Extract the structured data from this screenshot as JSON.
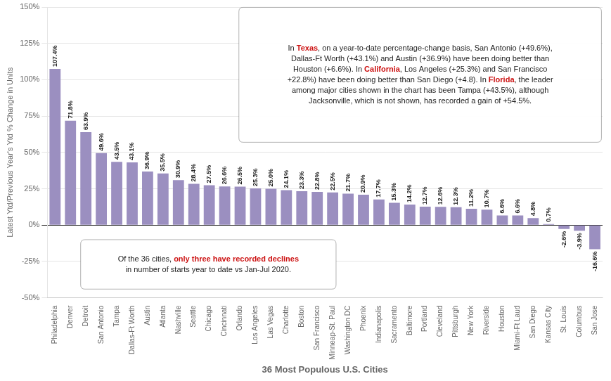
{
  "chart_data": {
    "type": "bar",
    "categories": [
      "Philadelphia",
      "Denver",
      "Detroit",
      "San Antonio",
      "Tampa",
      "Dallas-Ft Worth",
      "Austin",
      "Atlanta",
      "Nashville",
      "Seattle",
      "Chicago",
      "Cincinnati",
      "Orlando",
      "Los Angeles",
      "Las Vegas",
      "Charlotte",
      "Boston",
      "San Francisco",
      "Minneap-St. Paul",
      "Washington DC",
      "Phoenix",
      "Indianapolis",
      "Sacramento",
      "Baltimore",
      "Portland",
      "Cleveland",
      "Pittsburgh",
      "New York",
      "Riverside",
      "Houston",
      "Miami-Ft Laud",
      "San Diego",
      "Kansas City",
      "St. Louis",
      "Columbus",
      "San Jose"
    ],
    "values": [
      107.4,
      71.8,
      63.9,
      49.6,
      43.5,
      43.1,
      36.9,
      35.5,
      30.9,
      28.4,
      27.5,
      26.6,
      26.5,
      25.3,
      25.0,
      24.1,
      23.3,
      22.8,
      22.5,
      21.7,
      20.9,
      17.7,
      15.3,
      14.2,
      12.7,
      12.6,
      12.3,
      11.2,
      10.7,
      6.6,
      6.6,
      4.8,
      0.7,
      -2.6,
      -3.9,
      -16.6
    ],
    "value_labels": [
      "107.4%",
      "71.8%",
      "63.9%",
      "49.6%",
      "43.5%",
      "43.1%",
      "36.9%",
      "35.5%",
      "30.9%",
      "28.4%",
      "27.5%",
      "26.6%",
      "26.5%",
      "25.3%",
      "25.0%",
      "24.1%",
      "23.3%",
      "22.8%",
      "22.5%",
      "21.7%",
      "20.9%",
      "17.7%",
      "15.3%",
      "14.2%",
      "12.7%",
      "12.6%",
      "12.3%",
      "11.2%",
      "10.7%",
      "6.6%",
      "6.6%",
      "4.8%",
      "0.7%",
      "-2.6%",
      "-3.9%",
      "-16.6%"
    ],
    "data_labels": true,
    "color": "#9b8fc0",
    "xlabel": "36 Most Populous U.S. Cities",
    "ylabel": "Latest Ytd/Previous Year's Ytd % Change in Units",
    "ylim": [
      -50,
      150
    ],
    "yticks": [
      {
        "value": -50,
        "label": "-50%"
      },
      {
        "value": -25,
        "label": "-25%"
      },
      {
        "value": 0,
        "label": "0%"
      },
      {
        "value": 25,
        "label": "25%"
      },
      {
        "value": 50,
        "label": "50%"
      },
      {
        "value": 75,
        "label": "75%"
      },
      {
        "value": 100,
        "label": "100%"
      },
      {
        "value": 125,
        "label": "125%"
      },
      {
        "value": 150,
        "label": "150%"
      }
    ],
    "grid": true,
    "annotations": [
      [
        [
          {
            "text": "In "
          },
          {
            "text": "Texas",
            "color": "#cc1111"
          },
          {
            "text": ", on a year-to-date percentage-change basis, San Antonio (+49.6%),"
          }
        ],
        [
          {
            "text": "Dallas-Ft Worth (+43.1%) and Austin (+36.9%) have been doing better than"
          }
        ],
        [
          {
            "text": "Houston (+6.6%). In "
          },
          {
            "text": "California",
            "color": "#cc1111"
          },
          {
            "text": ", Los Angeles (+25.3%) and San Francisco"
          }
        ],
        [
          {
            "text": "+22.8%) have been doing better than San Diego (+4.8). In "
          },
          {
            "text": "Florida",
            "color": "#cc1111"
          },
          {
            "text": ", the leader"
          }
        ],
        [
          {
            "text": "among major cities shown in the chart has been Tampa (+43.5%), although"
          }
        ],
        [
          {
            "text": "Jacksonville, which is not shown, has recorded a gain of +54.5%."
          }
        ]
      ],
      [
        [
          {
            "text": "Of the 36 cities, "
          },
          {
            "text": "only three have recorded declines",
            "color": "#cc1111"
          }
        ],
        [
          {
            "text": "in number of starts year to date vs Jan-Jul 2020."
          }
        ]
      ]
    ]
  }
}
